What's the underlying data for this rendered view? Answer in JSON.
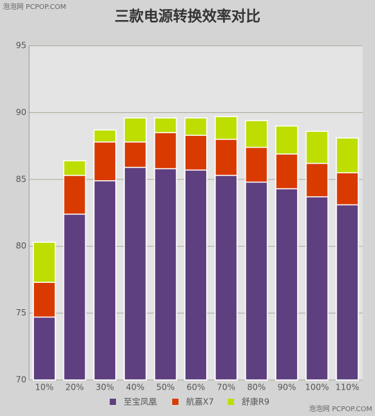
{
  "chart_data": {
    "type": "bar",
    "title": "三款电源转换效率对比",
    "annotations": [
      "泡泡网 PCPOP.COM",
      "泡泡网 PCPOP.COM"
    ],
    "categories": [
      "10%",
      "20%",
      "30%",
      "40%",
      "50%",
      "60%",
      "70%",
      "80%",
      "90%",
      "100%",
      "110%"
    ],
    "series": [
      {
        "name": "至宝凤凰",
        "color": "#5e3f7f",
        "values": [
          74.7,
          82.4,
          84.9,
          85.9,
          85.8,
          85.7,
          85.3,
          84.8,
          84.3,
          83.7,
          83.1
        ]
      },
      {
        "name": "航嘉X7",
        "color": "#d93a00",
        "values": [
          77.3,
          85.3,
          87.8,
          87.8,
          88.5,
          88.3,
          88.0,
          87.4,
          86.9,
          86.2,
          85.5
        ]
      },
      {
        "name": "舒康R9",
        "color": "#bedd00",
        "values": [
          80.3,
          86.4,
          88.7,
          89.6,
          89.6,
          89.6,
          89.7,
          89.4,
          89.0,
          88.6,
          88.1
        ]
      }
    ],
    "ylim": [
      70,
      95
    ],
    "yticks": [
      70,
      75,
      80,
      85,
      90,
      95
    ],
    "grid": true
  }
}
